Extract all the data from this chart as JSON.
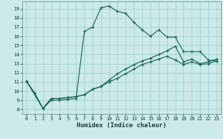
{
  "title": "",
  "xlabel": "Humidex (Indice chaleur)",
  "bg_color": "#cceae7",
  "grid_color": "#9ecece",
  "line_color": "#1a6b5a",
  "xlim": [
    -0.5,
    23.5
  ],
  "ylim": [
    7.5,
    19.8
  ],
  "yticks": [
    8,
    9,
    10,
    11,
    12,
    13,
    14,
    15,
    16,
    17,
    18,
    19
  ],
  "xticks": [
    0,
    1,
    2,
    3,
    4,
    5,
    6,
    7,
    8,
    9,
    10,
    11,
    12,
    13,
    14,
    15,
    16,
    17,
    18,
    19,
    20,
    21,
    22,
    23
  ],
  "line1_x": [
    0,
    1,
    2,
    3,
    4,
    5,
    6,
    7,
    8,
    9,
    10,
    11,
    12,
    13,
    14,
    15,
    16,
    17,
    18,
    19,
    20,
    21,
    22,
    23
  ],
  "line1_y": [
    11.1,
    9.8,
    8.1,
    9.0,
    9.0,
    9.1,
    9.2,
    16.5,
    17.0,
    19.1,
    19.3,
    18.7,
    18.5,
    17.5,
    16.7,
    16.0,
    16.7,
    15.9,
    15.9,
    14.3,
    14.3,
    14.3,
    13.4,
    13.3
  ],
  "line2_x": [
    0,
    2,
    3,
    4,
    5,
    6,
    7,
    8,
    9,
    10,
    11,
    12,
    13,
    14,
    15,
    16,
    17,
    18,
    19,
    20,
    21,
    22,
    23
  ],
  "line2_y": [
    11.1,
    8.1,
    9.2,
    9.2,
    9.3,
    9.4,
    9.6,
    10.2,
    10.5,
    11.2,
    11.9,
    12.4,
    12.9,
    13.3,
    13.6,
    14.0,
    14.4,
    14.9,
    13.2,
    13.5,
    13.0,
    13.2,
    13.5
  ],
  "line3_x": [
    0,
    2,
    3,
    4,
    5,
    6,
    7,
    8,
    9,
    10,
    11,
    12,
    13,
    14,
    15,
    16,
    17,
    18,
    19,
    20,
    21,
    22,
    23
  ],
  "line3_y": [
    11.1,
    8.1,
    9.2,
    9.2,
    9.3,
    9.4,
    9.6,
    10.2,
    10.5,
    11.0,
    11.4,
    11.9,
    12.4,
    12.9,
    13.2,
    13.5,
    13.8,
    13.4,
    12.9,
    13.2,
    12.9,
    13.0,
    13.3
  ],
  "marker": "+",
  "marker_size": 3.5,
  "linewidth": 0.9
}
